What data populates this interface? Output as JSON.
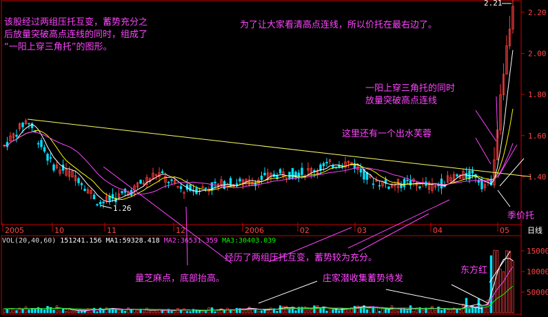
{
  "chart_data": {
    "type": "candlestick",
    "price_axis": {
      "ylim": [
        1.18,
        2.24
      ],
      "ticks": [
        1.4,
        1.6,
        1.8,
        2.0,
        2.2
      ]
    },
    "volume_axis": {
      "ylim": [
        0,
        170000
      ],
      "ticks": [
        50000,
        100000,
        150000
      ]
    },
    "time_labels": [
      "2005",
      "10",
      "11",
      "12",
      "2006",
      "02",
      "03",
      "04",
      "05",
      "日线"
    ],
    "highlight_labels": {
      "max": "2.21",
      "min": "1.26"
    },
    "volume_legend": {
      "name": "VOL(20,40,60)",
      "vol": "151241.156",
      "ma1": "MA1:59328.418",
      "ma2": "MA2:36531.359",
      "ma3": "MA3:30403.039"
    }
  },
  "annotations": {
    "intro": "该股经过两组压托互变，蓄势充分之\n后放量突破高点连线的同时，组成了\n“一阳上穿三角托”的图形。",
    "top_right": "为了让大家看清高点连线，所以价托在最右边了。",
    "triangle": "一阳上穿三角托的同时\n放量突破高点连线",
    "lotus": "这里还有一个出水芙蓉",
    "jiatuo": "季价托",
    "two_groups": "经历了两组压托互变，蓄势较为充分。",
    "volume_base": "量芝麻点，底部抬高。",
    "accumulate": "庄家潜收集蓄势待发",
    "dongfanghong": "东方红"
  },
  "colors": {
    "up": "#ff3b3b",
    "down": "#00e0ff",
    "ma_short": "#ffffff",
    "ma_mid": "#ffff00",
    "ma_long": "#ff44ff",
    "axis": "#cc0000",
    "annotation": "#ff44ff"
  }
}
